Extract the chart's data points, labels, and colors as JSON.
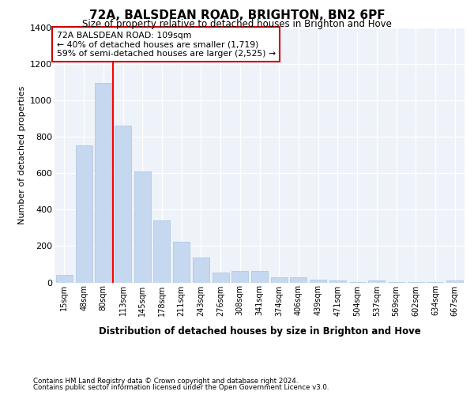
{
  "title": "72A, BALSDEAN ROAD, BRIGHTON, BN2 6PF",
  "subtitle": "Size of property relative to detached houses in Brighton and Hove",
  "xlabel": "Distribution of detached houses by size in Brighton and Hove",
  "ylabel": "Number of detached properties",
  "footnote1": "Contains HM Land Registry data © Crown copyright and database right 2024.",
  "footnote2": "Contains public sector information licensed under the Open Government Licence v3.0.",
  "categories": [
    "15sqm",
    "48sqm",
    "80sqm",
    "113sqm",
    "145sqm",
    "178sqm",
    "211sqm",
    "243sqm",
    "276sqm",
    "308sqm",
    "341sqm",
    "374sqm",
    "406sqm",
    "439sqm",
    "471sqm",
    "504sqm",
    "537sqm",
    "569sqm",
    "602sqm",
    "634sqm",
    "667sqm"
  ],
  "values": [
    40,
    755,
    1095,
    860,
    610,
    340,
    225,
    135,
    55,
    65,
    65,
    30,
    30,
    15,
    10,
    1,
    10,
    1,
    1,
    1,
    10
  ],
  "bar_color": "#c5d8f0",
  "bar_edge_color": "#a8c4e0",
  "background_color": "#eef2f9",
  "grid_color": "#ffffff",
  "red_line_index": 3,
  "annotation_text": "72A BALSDEAN ROAD: 109sqm\n← 40% of detached houses are smaller (1,719)\n59% of semi-detached houses are larger (2,525) →",
  "annotation_box_color": "#ffffff",
  "annotation_box_edge_color": "#cc0000",
  "ylim": [
    0,
    1400
  ],
  "yticks": [
    0,
    200,
    400,
    600,
    800,
    1000,
    1200,
    1400
  ]
}
